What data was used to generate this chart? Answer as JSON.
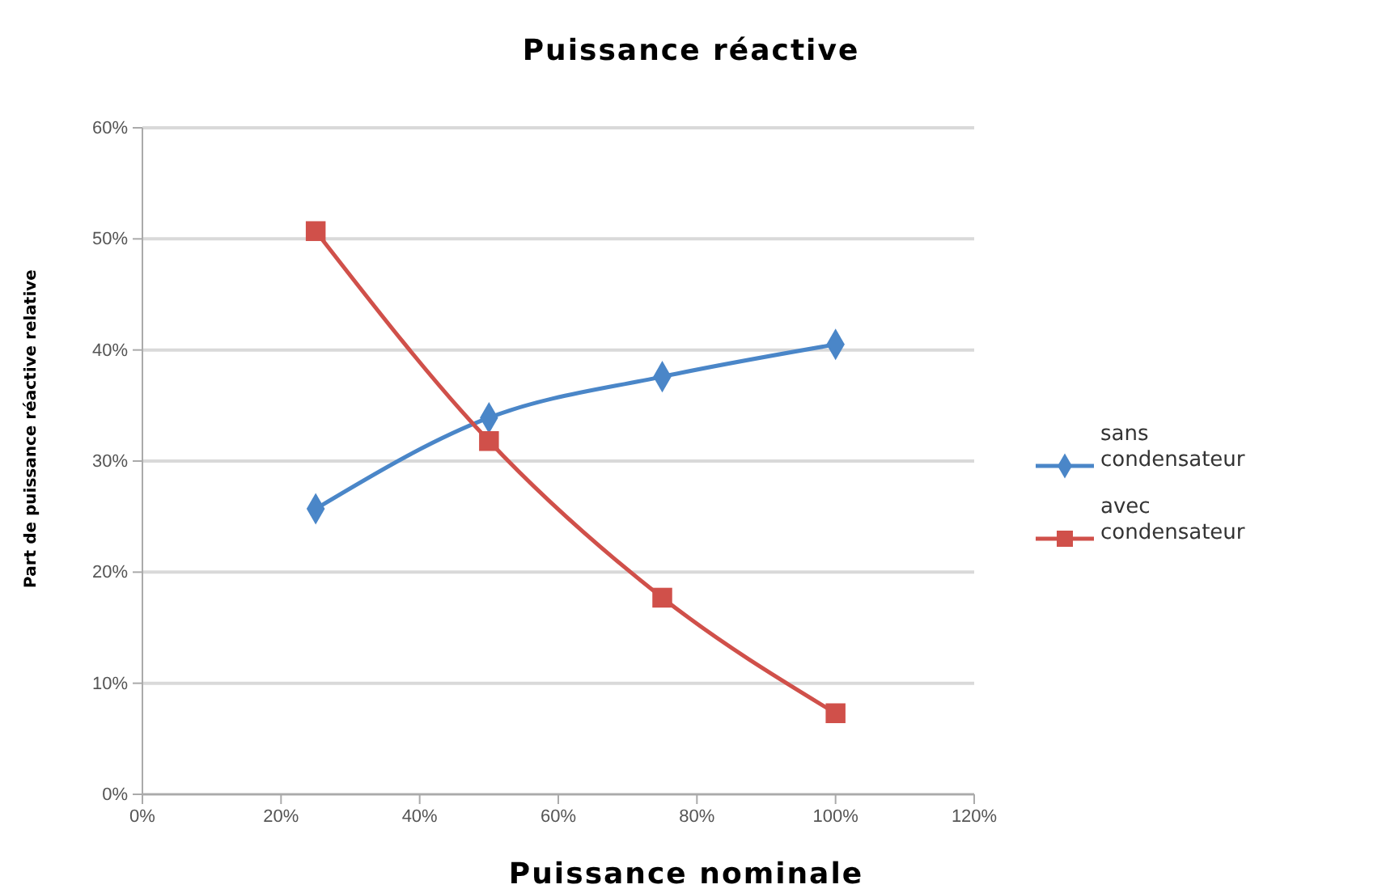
{
  "chart_data": {
    "type": "line",
    "title": "Puissance réactive",
    "xlabel": "Puissance nominale",
    "ylabel": "Part de puissance réactive relative",
    "x": [
      25,
      50,
      75,
      100
    ],
    "series": [
      {
        "name": "sans condensateur",
        "color": "#4a86c8",
        "marker": "diamond",
        "values": [
          25.7,
          33.9,
          37.6,
          40.5
        ]
      },
      {
        "name": "avec condensateur",
        "color": "#d0504a",
        "marker": "square",
        "values": [
          50.7,
          31.8,
          17.7,
          7.3
        ]
      }
    ],
    "xlim": [
      0,
      120
    ],
    "xticks": [
      {
        "value": 0,
        "label": "0%"
      },
      {
        "value": 20,
        "label": "20%"
      },
      {
        "value": 40,
        "label": "40%"
      },
      {
        "value": 60,
        "label": "60%"
      },
      {
        "value": 80,
        "label": "80%"
      },
      {
        "value": 100,
        "label": "100%"
      },
      {
        "value": 120,
        "label": "120%"
      }
    ],
    "ylim": [
      0,
      60
    ],
    "yticks": [
      {
        "value": 0,
        "label": "0%"
      },
      {
        "value": 10,
        "label": "10%"
      },
      {
        "value": 20,
        "label": "20%"
      },
      {
        "value": 30,
        "label": "30%"
      },
      {
        "value": 40,
        "label": "40%"
      },
      {
        "value": 50,
        "label": "50%"
      },
      {
        "value": 60,
        "label": "60%"
      }
    ],
    "grid": "y",
    "legend": "right",
    "line_style": "solid"
  }
}
